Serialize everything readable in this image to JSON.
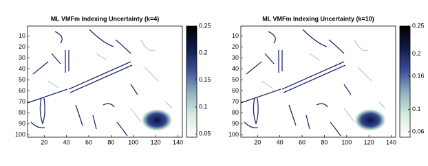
{
  "chart_data": [
    {
      "type": "heatmap",
      "title": "ML VMFm Indexing Uncertainty (k=4)",
      "xlim": [
        5,
        144
      ],
      "xticks": [
        20,
        40,
        60,
        80,
        100,
        120,
        140
      ],
      "ylim": [
        1,
        102
      ],
      "yticks": [
        10,
        20,
        30,
        40,
        50,
        60,
        70,
        80,
        90,
        100
      ],
      "y_reversed": true,
      "colorbar": {
        "clim": [
          0.044,
          0.25
        ],
        "ticks": [
          0.05,
          0.1,
          0.15,
          0.2,
          0.25
        ],
        "colors": [
          "#ffffff",
          "#d4eddc",
          "#8fb3c2",
          "#3c4e98",
          "#101a4a",
          "#000000"
        ]
      }
    },
    {
      "type": "heatmap",
      "title": "ML VMFm Indexing Uncertainty (k=10)",
      "xlim": [
        5,
        144
      ],
      "xticks": [
        20,
        40,
        60,
        80,
        100,
        120,
        140
      ],
      "ylim": [
        1,
        102
      ],
      "yticks": [
        10,
        20,
        30,
        40,
        50,
        60,
        70,
        80,
        90,
        100
      ],
      "y_reversed": true,
      "colorbar": {
        "clim": [
          0.05,
          0.25
        ],
        "ticks": [
          0.06,
          0.1,
          0.16,
          0.2,
          0.25
        ],
        "colors": [
          "#ffffff",
          "#d4eddc",
          "#8fb3c2",
          "#3c4e98",
          "#101a4a",
          "#000000"
        ]
      }
    }
  ]
}
